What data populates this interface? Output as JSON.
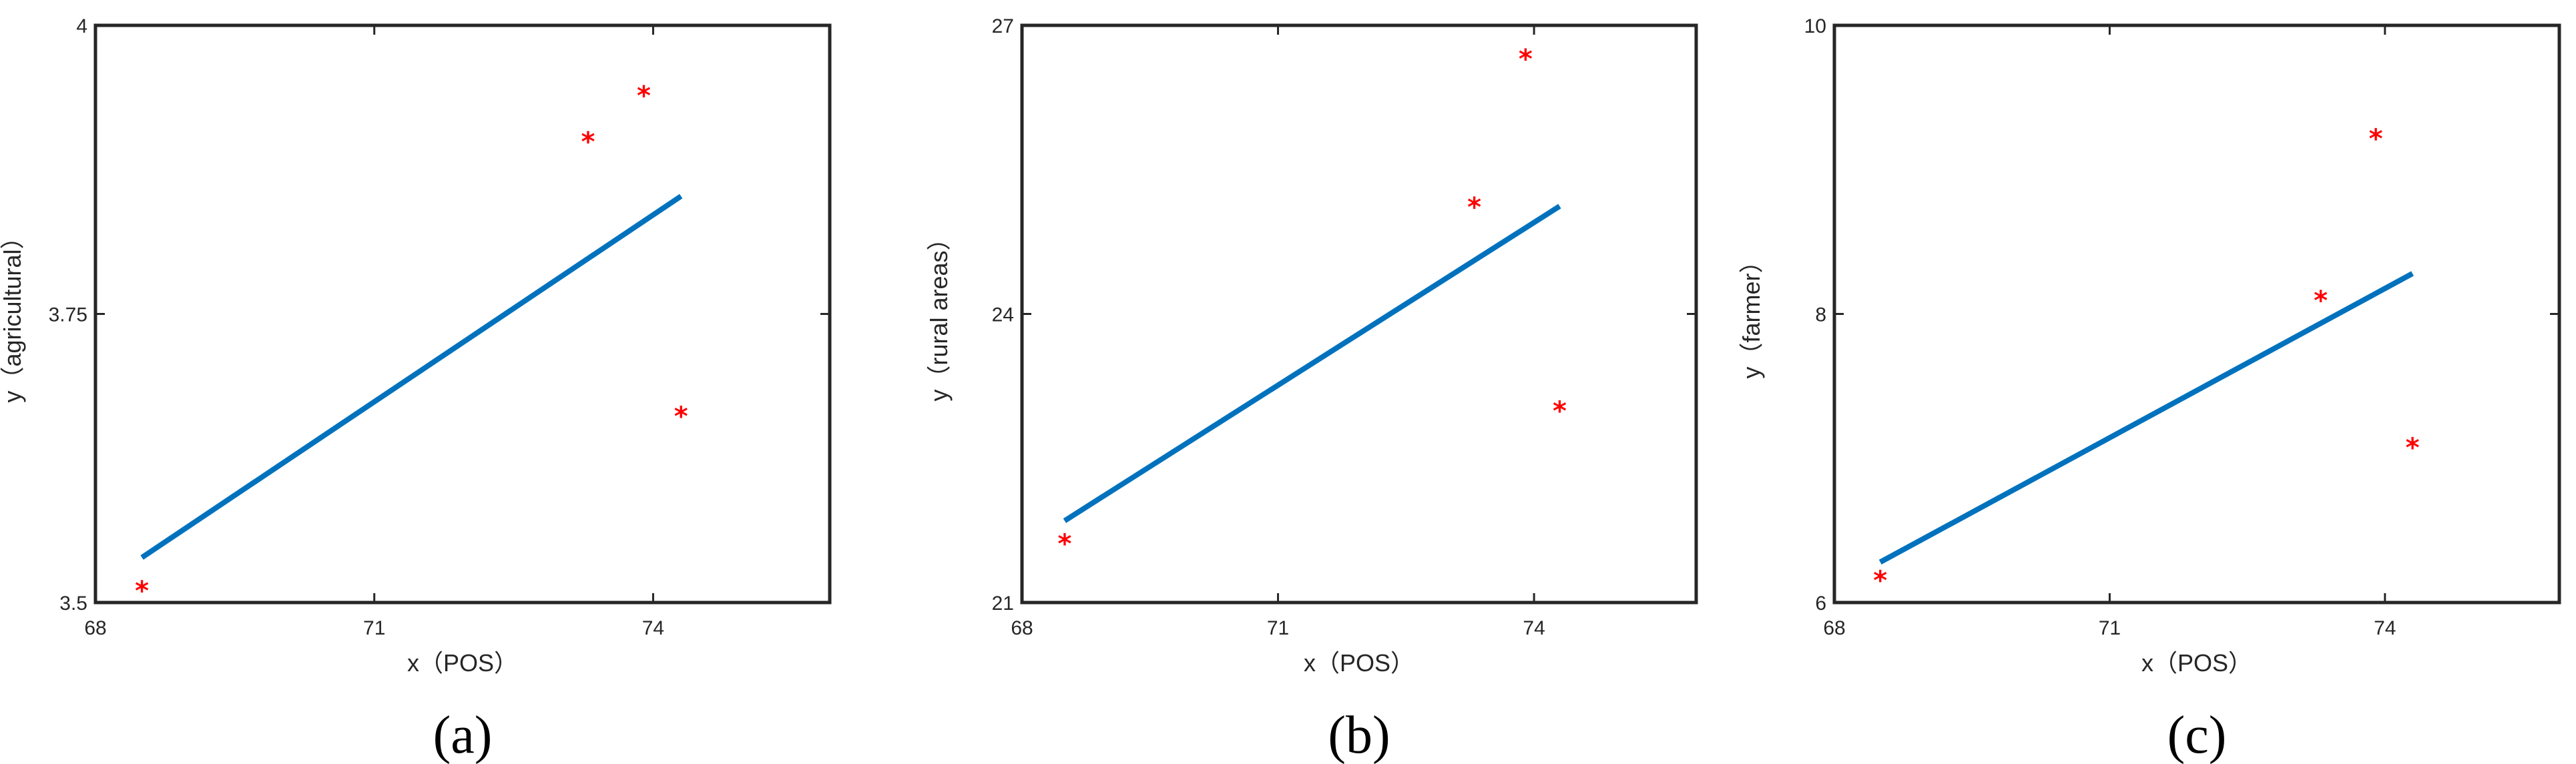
{
  "chart_data": [
    {
      "type": "scatter",
      "caption": "(a)",
      "xlabel": "x（POS）",
      "ylabel": "y（agricultural）",
      "xlim": [
        68,
        75.9
      ],
      "ylim": [
        3.5,
        4.0
      ],
      "xticks": [
        "68",
        "71",
        "74"
      ],
      "yticks": [
        "3.5",
        "3.75",
        "4"
      ],
      "points": [
        {
          "x": 68.5,
          "y": 3.511
        },
        {
          "x": 73.3,
          "y": 3.9
        },
        {
          "x": 73.9,
          "y": 3.94
        },
        {
          "x": 74.3,
          "y": 3.662
        }
      ],
      "fit_line": [
        {
          "x": 68.5,
          "y": 3.539
        },
        {
          "x": 74.3,
          "y": 3.852
        }
      ],
      "colors": {
        "points": "#ff0000",
        "line": "#0072bd"
      }
    },
    {
      "type": "scatter",
      "caption": "(b)",
      "xlabel": "x（POS）",
      "ylabel": "y（rural areas）",
      "xlim": [
        68,
        75.9
      ],
      "ylim": [
        21,
        27
      ],
      "xticks": [
        "68",
        "71",
        "74"
      ],
      "yticks": [
        "21",
        "24",
        "27"
      ],
      "points": [
        {
          "x": 68.5,
          "y": 21.62
        },
        {
          "x": 73.3,
          "y": 25.12
        },
        {
          "x": 73.9,
          "y": 26.66
        },
        {
          "x": 74.3,
          "y": 23.0
        }
      ],
      "fit_line": [
        {
          "x": 68.5,
          "y": 21.85
        },
        {
          "x": 74.3,
          "y": 25.12
        }
      ],
      "colors": {
        "points": "#ff0000",
        "line": "#0072bd"
      }
    },
    {
      "type": "scatter",
      "caption": "(c)",
      "xlabel": "x（POS）",
      "ylabel": "y（farmer）",
      "xlim": [
        68,
        75.9
      ],
      "ylim": [
        6,
        10
      ],
      "xticks": [
        "68",
        "71",
        "74"
      ],
      "yticks": [
        "6",
        "8",
        "10"
      ],
      "points": [
        {
          "x": 68.5,
          "y": 6.16
        },
        {
          "x": 73.3,
          "y": 8.1
        },
        {
          "x": 73.9,
          "y": 9.22
        },
        {
          "x": 74.3,
          "y": 7.08
        }
      ],
      "fit_line": [
        {
          "x": 68.5,
          "y": 6.28
        },
        {
          "x": 74.3,
          "y": 8.28
        }
      ],
      "colors": {
        "points": "#ff0000",
        "line": "#0072bd"
      }
    }
  ]
}
